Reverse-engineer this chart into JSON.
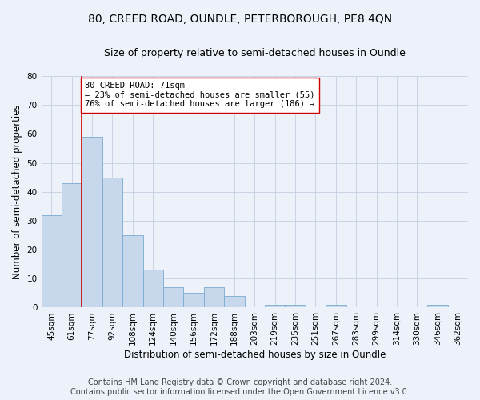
{
  "title": "80, CREED ROAD, OUNDLE, PETERBOROUGH, PE8 4QN",
  "subtitle": "Size of property relative to semi-detached houses in Oundle",
  "xlabel": "Distribution of semi-detached houses by size in Oundle",
  "ylabel": "Number of semi-detached properties",
  "categories": [
    "45sqm",
    "61sqm",
    "77sqm",
    "92sqm",
    "108sqm",
    "124sqm",
    "140sqm",
    "156sqm",
    "172sqm",
    "188sqm",
    "203sqm",
    "219sqm",
    "235sqm",
    "251sqm",
    "267sqm",
    "283sqm",
    "299sqm",
    "314sqm",
    "330sqm",
    "346sqm",
    "362sqm"
  ],
  "values": [
    32,
    43,
    59,
    45,
    25,
    13,
    7,
    5,
    7,
    4,
    0,
    1,
    1,
    0,
    1,
    0,
    0,
    0,
    0,
    1,
    0
  ],
  "bar_color": "#c8d8ec",
  "bar_edge_color": "#7aaad0",
  "property_line_x": 1.5,
  "property_sqm": 71,
  "pct_smaller": 23,
  "n_smaller": 55,
  "pct_larger": 76,
  "n_larger": 186,
  "annotation_text_line1": "80 CREED ROAD: 71sqm",
  "annotation_text_line2": "← 23% of semi-detached houses are smaller (55)",
  "annotation_text_line3": "76% of semi-detached houses are larger (186) →",
  "red_line_color": "#cc0000",
  "annotation_box_facecolor": "#ffffff",
  "annotation_box_edgecolor": "#cc0000",
  "ylim": [
    0,
    80
  ],
  "yticks": [
    0,
    10,
    20,
    30,
    40,
    50,
    60,
    70,
    80
  ],
  "footer_line1": "Contains HM Land Registry data © Crown copyright and database right 2024.",
  "footer_line2": "Contains public sector information licensed under the Open Government Licence v3.0.",
  "background_color": "#edf2fa",
  "grid_color": "#c5cfe0",
  "title_fontsize": 10,
  "subtitle_fontsize": 9,
  "axis_label_fontsize": 8.5,
  "tick_fontsize": 7.5,
  "annotation_fontsize": 7.5,
  "footer_fontsize": 7
}
